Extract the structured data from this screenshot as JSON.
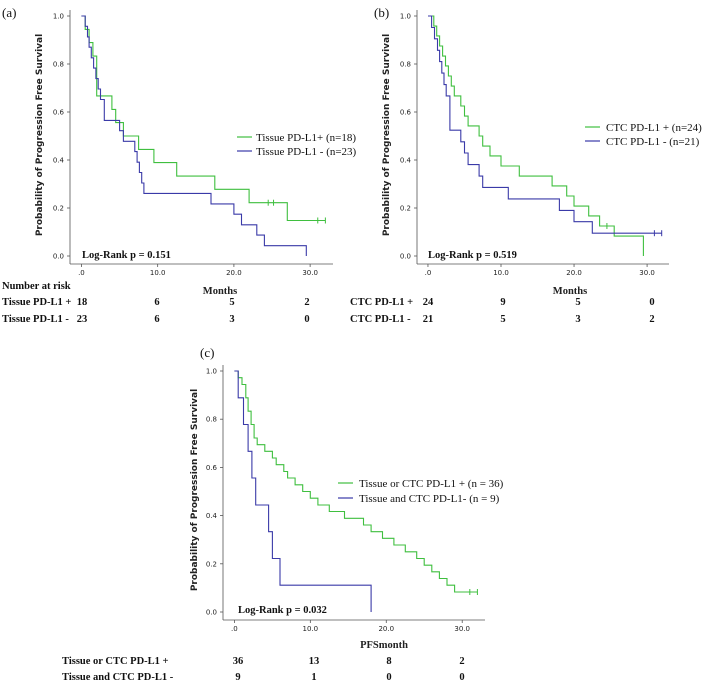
{
  "chart_data": [
    {
      "type": "line",
      "panel_label": "(a)",
      "title": "",
      "xlabel": "Months",
      "ylabel": "Probability of Progression Free Survival",
      "xlim": [
        -1.5,
        33
      ],
      "ylim": [
        0,
        1.0
      ],
      "x_ticks": [
        ".0",
        "10.0",
        "20.0",
        "30.0"
      ],
      "y_ticks": [
        "0.0",
        "0.2",
        "0.4",
        "0.6",
        "0.8",
        "1.0"
      ],
      "legend": [
        "Tissue PD-L1+ (n=18)",
        "Tissue PD-L1 - (n=23)"
      ],
      "logrank": "Log-Rank p = 0.151",
      "series": [
        {
          "name": "Tissue PD-L1+ (n=18)",
          "color": "#3fbf3f",
          "steps": [
            [
              0,
              1.0
            ],
            [
              0.5,
              0.944
            ],
            [
              1.0,
              0.889
            ],
            [
              1.5,
              0.833
            ],
            [
              2.0,
              0.667
            ],
            [
              4.0,
              0.611
            ],
            [
              4.5,
              0.556
            ],
            [
              5.5,
              0.5
            ],
            [
              7.5,
              0.444
            ],
            [
              9.5,
              0.389
            ],
            [
              12.5,
              0.333
            ],
            [
              17.5,
              0.278
            ],
            [
              22.0,
              0.222
            ],
            [
              27.0,
              0.148
            ],
            [
              32.0,
              0.148
            ]
          ],
          "censor": [
            [
              24.5,
              0.222
            ],
            [
              25.2,
              0.222
            ],
            [
              31.0,
              0.148
            ],
            [
              32.0,
              0.148
            ]
          ]
        },
        {
          "name": "Tissue PD-L1 - (n=23)",
          "color": "#3a3aa8",
          "steps": [
            [
              0,
              1.0
            ],
            [
              0.5,
              0.957
            ],
            [
              0.8,
              0.913
            ],
            [
              1.0,
              0.87
            ],
            [
              1.3,
              0.826
            ],
            [
              1.6,
              0.783
            ],
            [
              1.9,
              0.739
            ],
            [
              2.2,
              0.696
            ],
            [
              2.5,
              0.652
            ],
            [
              3.0,
              0.565
            ],
            [
              5.0,
              0.522
            ],
            [
              5.5,
              0.478
            ],
            [
              7.0,
              0.435
            ],
            [
              7.3,
              0.391
            ],
            [
              7.6,
              0.348
            ],
            [
              7.9,
              0.304
            ],
            [
              8.2,
              0.261
            ],
            [
              17.0,
              0.217
            ],
            [
              20.0,
              0.174
            ],
            [
              21.0,
              0.13
            ],
            [
              23.0,
              0.087
            ],
            [
              24.0,
              0.043
            ],
            [
              29.5,
              0.043
            ],
            [
              29.5,
              0.0
            ]
          ],
          "censor": []
        }
      ],
      "risk_table": {
        "header": "Number at risk",
        "rows": [
          {
            "label": "Tissue PD-L1 +",
            "values": [
              "18",
              "6",
              "5",
              "2"
            ]
          },
          {
            "label": "Tissue PD-L1 -",
            "values": [
              "23",
              "6",
              "3",
              "0"
            ]
          }
        ]
      }
    },
    {
      "type": "line",
      "panel_label": "(b)",
      "title": "",
      "xlabel": "Months",
      "ylabel": "Probability of Progression Free Survival",
      "xlim": [
        -1.5,
        33
      ],
      "ylim": [
        0,
        1.0
      ],
      "x_ticks": [
        ".0",
        "10.0",
        "20.0",
        "30.0"
      ],
      "y_ticks": [
        "0.0",
        "0.2",
        "0.4",
        "0.6",
        "0.8",
        "1.0"
      ],
      "legend": [
        "CTC PD-L1 + (n=24)",
        "CTC PD-L1 - (n=21)"
      ],
      "logrank": "Log-Rank p = 0.519",
      "series": [
        {
          "name": "CTC PD-L1 + (n=24)",
          "color": "#3fbf3f",
          "steps": [
            [
              0,
              1.0
            ],
            [
              0.8,
              0.958
            ],
            [
              1.2,
              0.917
            ],
            [
              1.6,
              0.875
            ],
            [
              2.0,
              0.833
            ],
            [
              2.4,
              0.792
            ],
            [
              2.8,
              0.75
            ],
            [
              3.2,
              0.708
            ],
            [
              3.6,
              0.667
            ],
            [
              4.5,
              0.625
            ],
            [
              5.0,
              0.583
            ],
            [
              5.5,
              0.542
            ],
            [
              7.0,
              0.5
            ],
            [
              7.5,
              0.458
            ],
            [
              8.5,
              0.417
            ],
            [
              10.0,
              0.375
            ],
            [
              12.5,
              0.333
            ],
            [
              17.0,
              0.292
            ],
            [
              19.0,
              0.25
            ],
            [
              20.0,
              0.208
            ],
            [
              22.0,
              0.167
            ],
            [
              23.5,
              0.125
            ],
            [
              25.5,
              0.083
            ],
            [
              29.5,
              0.042
            ],
            [
              29.5,
              0.0
            ]
          ],
          "censor": [
            [
              24.5,
              0.125
            ]
          ]
        },
        {
          "name": "CTC PD-L1 - (n=21)",
          "color": "#3a3aa8",
          "steps": [
            [
              0,
              1.0
            ],
            [
              0.5,
              0.952
            ],
            [
              0.9,
              0.905
            ],
            [
              1.3,
              0.857
            ],
            [
              1.6,
              0.81
            ],
            [
              1.9,
              0.762
            ],
            [
              2.2,
              0.714
            ],
            [
              2.5,
              0.667
            ],
            [
              3.0,
              0.524
            ],
            [
              4.5,
              0.476
            ],
            [
              5.0,
              0.429
            ],
            [
              5.5,
              0.381
            ],
            [
              7.0,
              0.333
            ],
            [
              7.5,
              0.286
            ],
            [
              11.0,
              0.238
            ],
            [
              18.0,
              0.19
            ],
            [
              20.0,
              0.143
            ],
            [
              22.5,
              0.095
            ],
            [
              32.0,
              0.095
            ]
          ],
          "censor": [
            [
              31.0,
              0.095
            ],
            [
              32.0,
              0.095
            ]
          ]
        }
      ],
      "risk_table": {
        "header": "",
        "rows": [
          {
            "label": "CTC PD-L1 +",
            "values": [
              "24",
              "9",
              "5",
              "0"
            ]
          },
          {
            "label": "CTC PD-L1 -",
            "values": [
              "21",
              "5",
              "3",
              "2"
            ]
          }
        ]
      }
    },
    {
      "type": "line",
      "panel_label": "(c)",
      "title": "",
      "xlabel": "PFSmonth",
      "ylabel": "Probability of Progression Free Survival",
      "xlim": [
        -1.5,
        33
      ],
      "ylim": [
        0,
        1.0
      ],
      "x_ticks": [
        ".0",
        "10.0",
        "20.0",
        "30.0"
      ],
      "y_ticks": [
        "0.0",
        "0.2",
        "0.4",
        "0.6",
        "0.8",
        "1.0"
      ],
      "legend": [
        "Tissue or CTC PD-L1 + (n = 36)",
        "Tissue and CTC PD-L1- (n = 9)"
      ],
      "logrank": "Log-Rank p = 0.032",
      "series": [
        {
          "name": "Tissue or CTC PD-L1 + (n = 36)",
          "color": "#3fbf3f",
          "steps": [
            [
              0,
              1.0
            ],
            [
              0.5,
              0.972
            ],
            [
              1.0,
              0.944
            ],
            [
              1.5,
              0.889
            ],
            [
              1.8,
              0.833
            ],
            [
              2.2,
              0.778
            ],
            [
              2.6,
              0.722
            ],
            [
              3.0,
              0.694
            ],
            [
              4.0,
              0.667
            ],
            [
              5.0,
              0.639
            ],
            [
              5.5,
              0.611
            ],
            [
              6.5,
              0.583
            ],
            [
              7.0,
              0.556
            ],
            [
              8.0,
              0.528
            ],
            [
              9.0,
              0.5
            ],
            [
              10.0,
              0.472
            ],
            [
              11.0,
              0.444
            ],
            [
              12.5,
              0.417
            ],
            [
              14.5,
              0.389
            ],
            [
              17.0,
              0.361
            ],
            [
              18.0,
              0.333
            ],
            [
              19.5,
              0.306
            ],
            [
              21.0,
              0.278
            ],
            [
              22.5,
              0.25
            ],
            [
              24.0,
              0.222
            ],
            [
              25.0,
              0.194
            ],
            [
              26.0,
              0.167
            ],
            [
              27.0,
              0.139
            ],
            [
              28.0,
              0.111
            ],
            [
              29.0,
              0.083
            ],
            [
              32.0,
              0.083
            ]
          ],
          "censor": [
            [
              31.0,
              0.083
            ],
            [
              32.0,
              0.083
            ]
          ]
        },
        {
          "name": "Tissue and CTC PD-L1- (n = 9)",
          "color": "#3a3aa8",
          "steps": [
            [
              0,
              1.0
            ],
            [
              0.5,
              0.889
            ],
            [
              1.2,
              0.778
            ],
            [
              1.8,
              0.667
            ],
            [
              2.3,
              0.556
            ],
            [
              2.8,
              0.444
            ],
            [
              4.5,
              0.333
            ],
            [
              5.0,
              0.222
            ],
            [
              6.0,
              0.111
            ],
            [
              18.0,
              0.111
            ],
            [
              18.0,
              0.0
            ]
          ],
          "censor": []
        }
      ],
      "risk_table": {
        "header": "",
        "rows": [
          {
            "label": "Tissue or CTC PD-L1 +",
            "values": [
              "36",
              "13",
              "8",
              "2"
            ]
          },
          {
            "label": "Tissue and CTC PD-L1 -",
            "values": [
              "9",
              "1",
              "0",
              "0"
            ]
          }
        ]
      }
    }
  ]
}
